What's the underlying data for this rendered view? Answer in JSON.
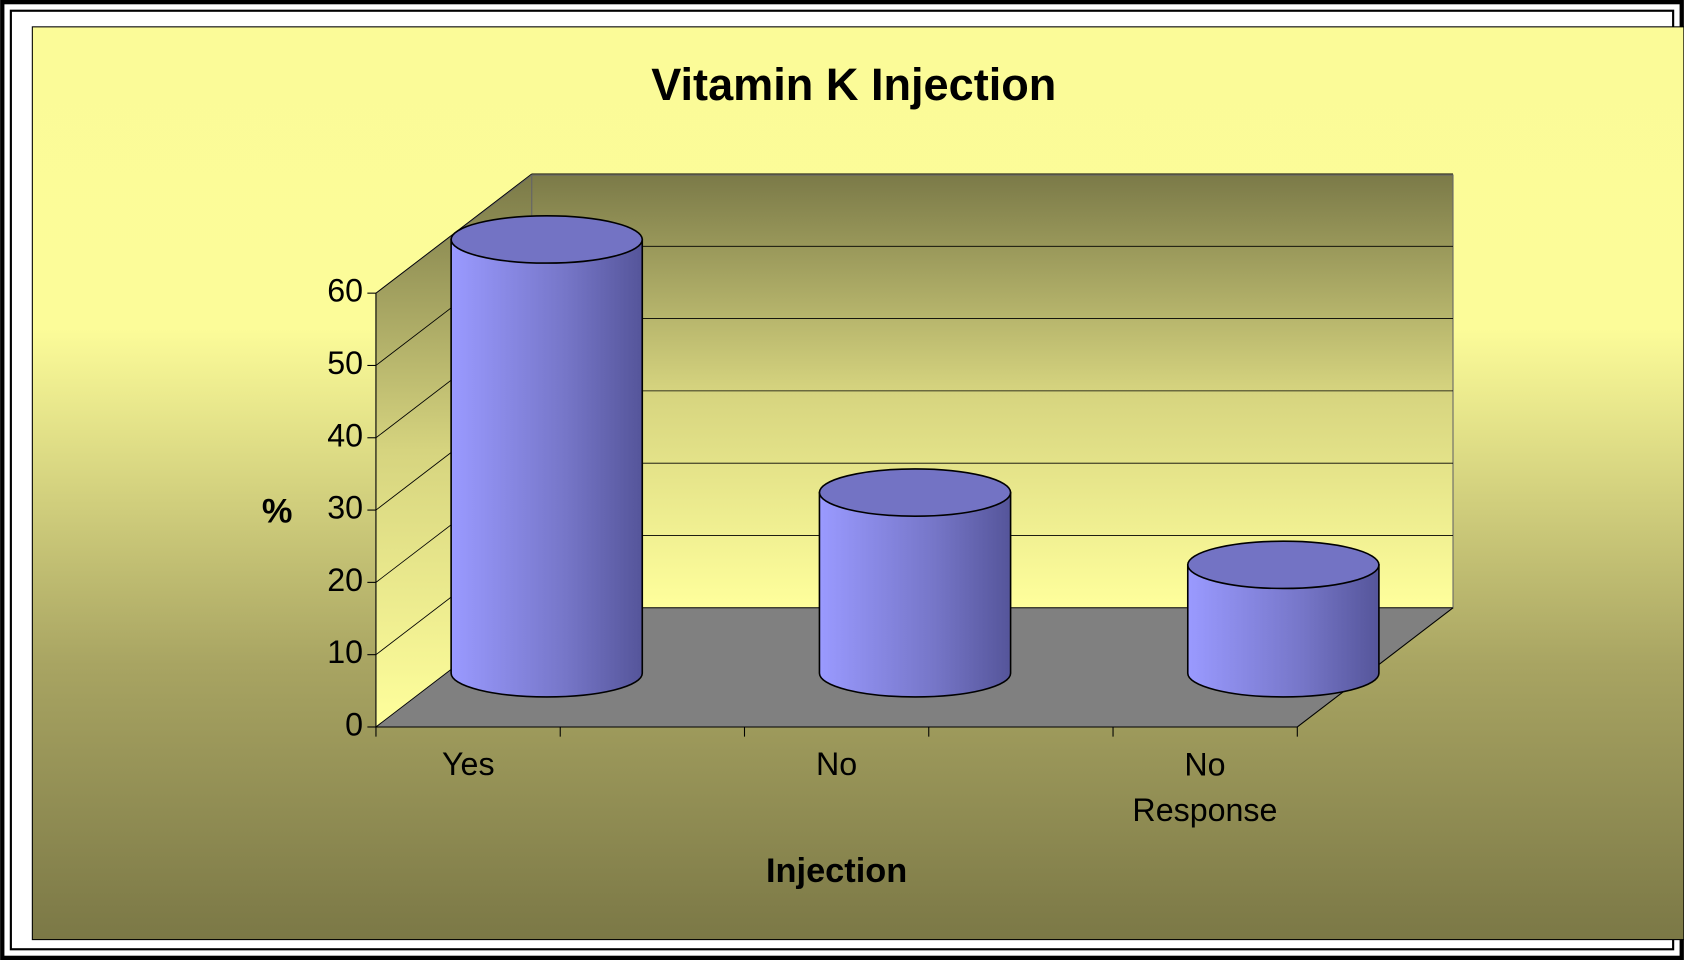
{
  "chart_data": {
    "type": "bar3d_cylinder",
    "title": "Vitamin K Injection",
    "x_label": "Injection",
    "y_label": "%",
    "categories": [
      "Yes",
      "No",
      "No Response"
    ],
    "values": [
      60,
      25,
      15
    ],
    "color": "#8080e0",
    "ylim": [
      0,
      60
    ],
    "yticks": [
      0,
      10,
      20,
      30,
      40,
      50,
      60
    ],
    "grid": true
  }
}
